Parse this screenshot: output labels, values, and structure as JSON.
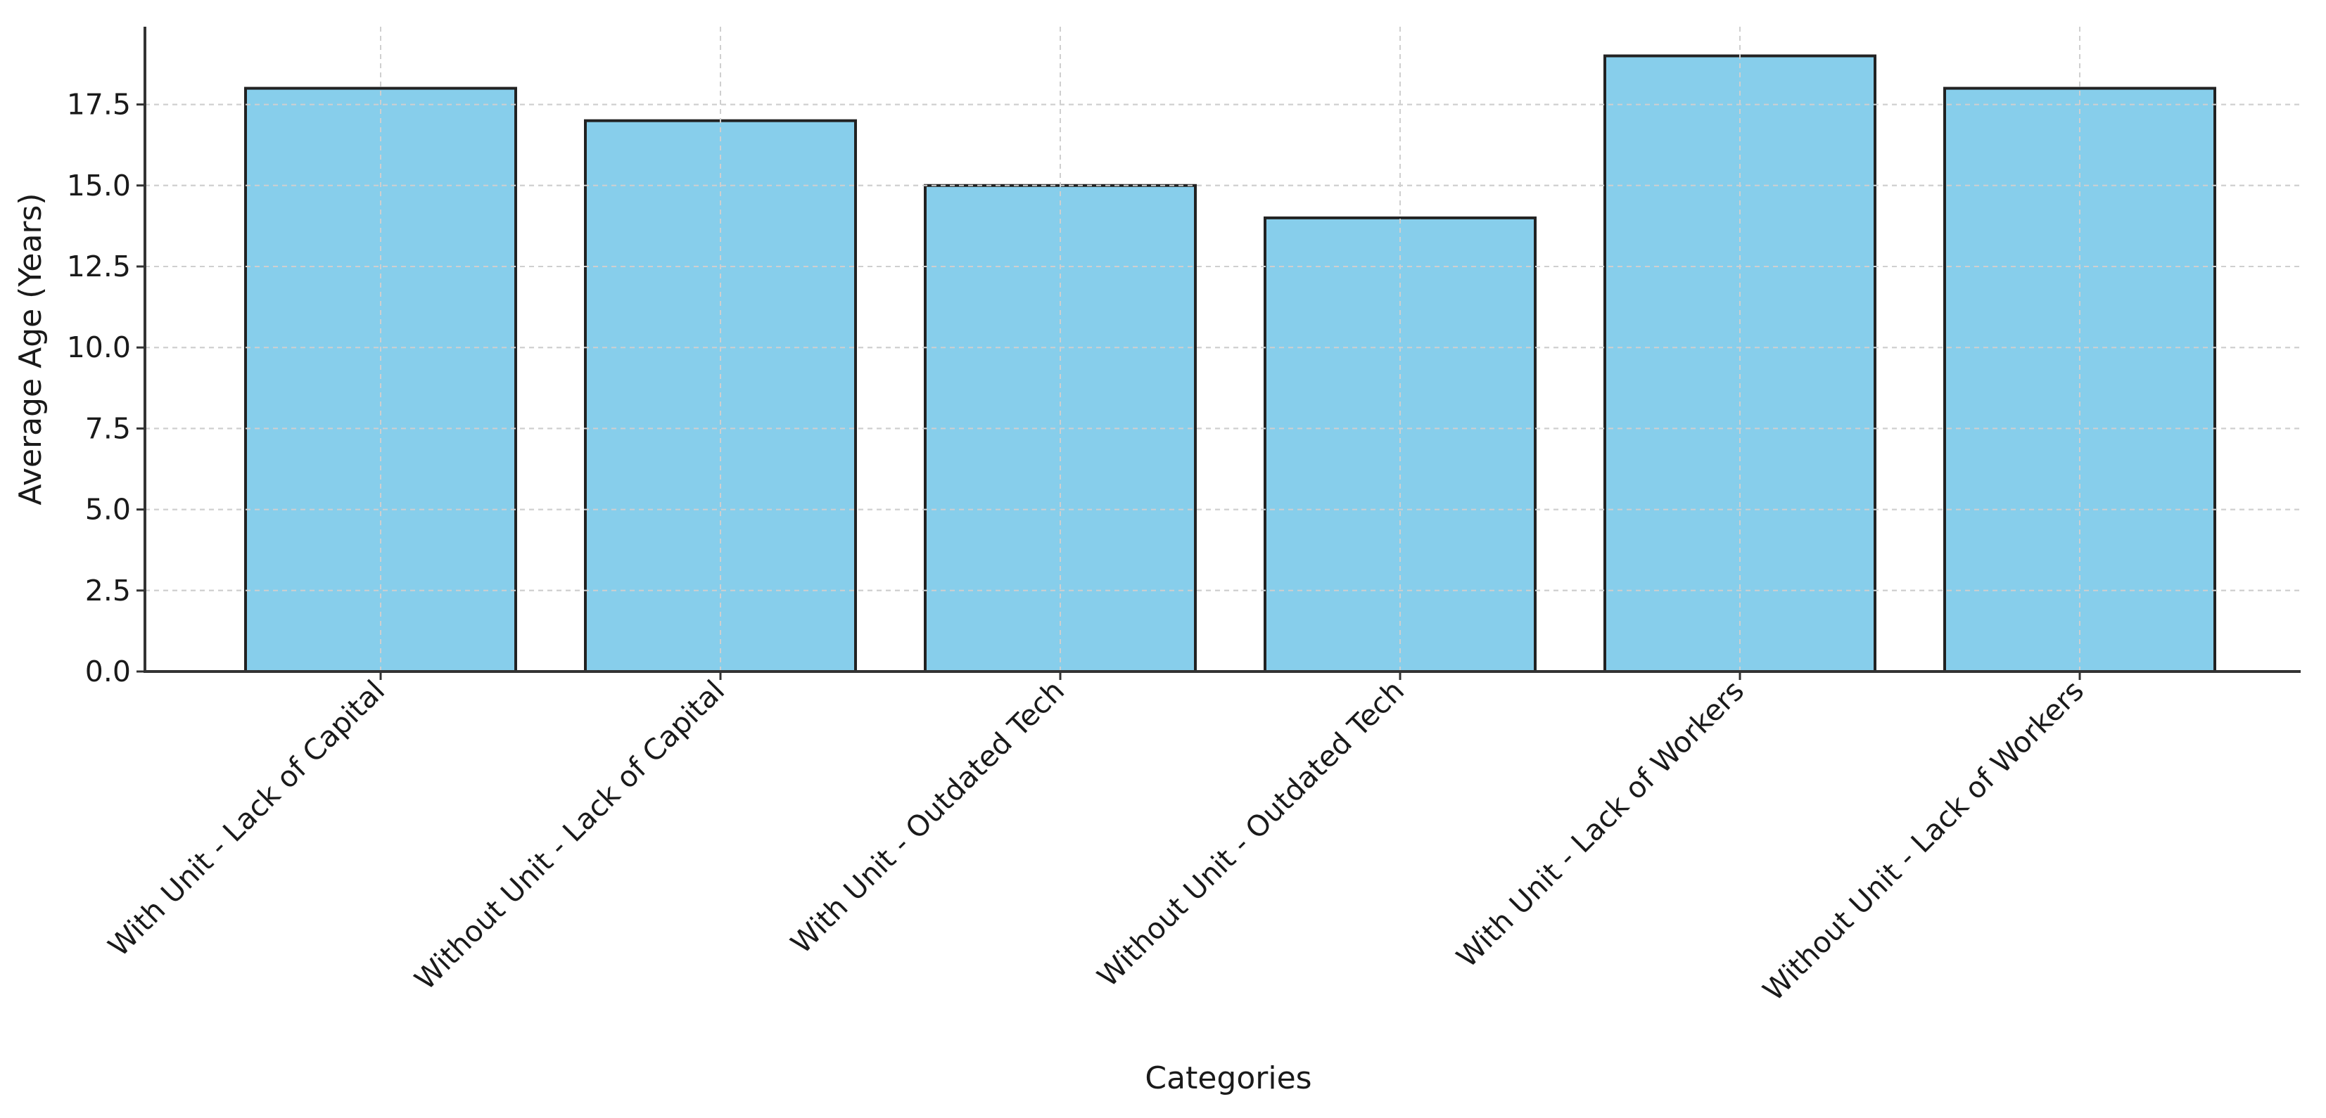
{
  "chart_data": {
    "type": "bar",
    "title": "",
    "xlabel": "Categories",
    "ylabel": "Average Age (Years)",
    "categories": [
      "With Unit - Lack of Capital",
      "Without Unit - Lack of Capital",
      "With Unit - Outdated Tech",
      "Without Unit - Outdated Tech",
      "With Unit - Lack of Workers",
      "Without Unit - Lack of Workers"
    ],
    "values": [
      18,
      17,
      15,
      14,
      19,
      18
    ],
    "ylim": [
      0,
      19.9
    ],
    "yticks": [
      "0.0",
      "2.5",
      "5.0",
      "7.5",
      "10.0",
      "12.5",
      "15.0",
      "17.5"
    ],
    "grid": true,
    "bar_color": "#87ceeb",
    "edge_color": "#222222"
  }
}
